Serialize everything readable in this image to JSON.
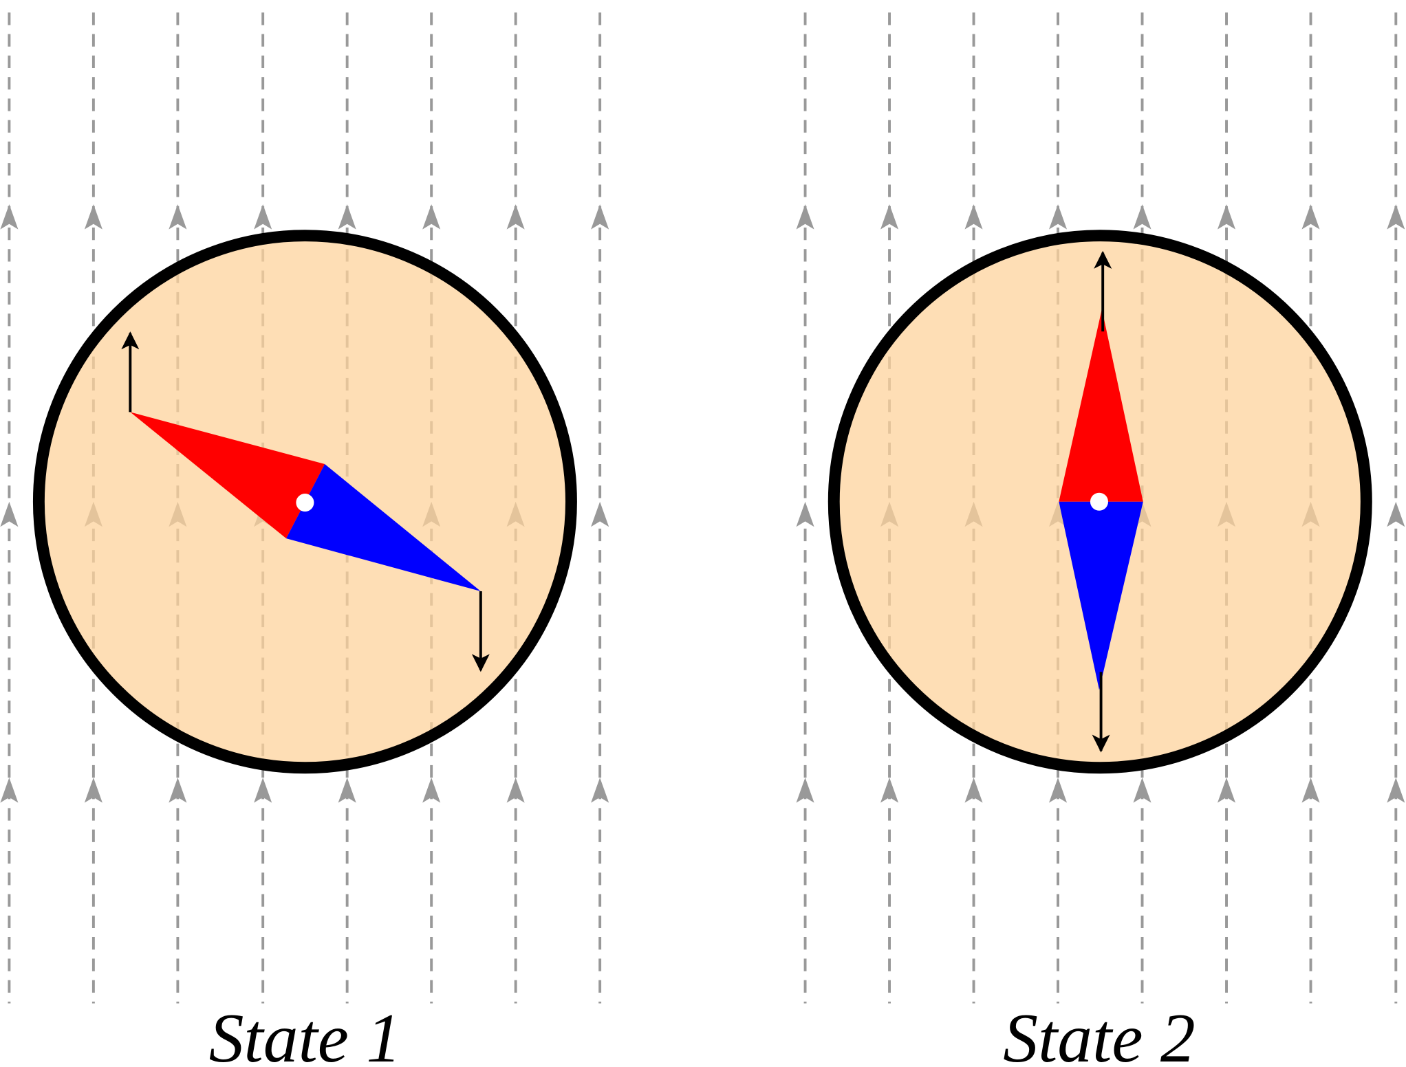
{
  "states": [
    {
      "label": "State 1"
    },
    {
      "label": "State 2"
    }
  ]
}
